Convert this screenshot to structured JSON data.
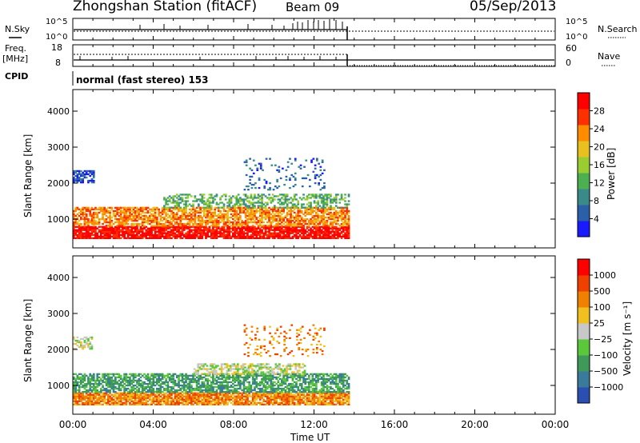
{
  "header": {
    "title": "Zhongshan Station (fitACF)",
    "beam": "Beam 09",
    "date": "05/Sep/2013"
  },
  "strip_labels": {
    "nsky": "N.Sky",
    "nsky_ticks": [
      "10^5",
      "10^0"
    ],
    "nsearch": "N.Search",
    "nsearch_ticks": [
      "10^5",
      "10^0"
    ],
    "freq_line1": "Freq.",
    "freq_line2": "[MHz]",
    "freq_ticks": [
      "18",
      "8"
    ],
    "nave": "Nave",
    "nave_ticks": [
      "60",
      "0"
    ],
    "cpid": "CPID",
    "cpid_value": "normal (fast stereo) 153"
  },
  "chart_data": [
    {
      "type": "heatmap",
      "name": "power-panel",
      "ylabel": "Slant Range [km]",
      "xlabel": "",
      "yticks": [
        "1000",
        "2000",
        "3000",
        "4000"
      ],
      "ylim": [
        200,
        4600
      ],
      "xlim": [
        0,
        24
      ],
      "data_until_hour": 13.7,
      "colorbar": {
        "label": "Power [dB]",
        "ticks": [
          "4",
          "8",
          "12",
          "16",
          "20",
          "24",
          "28"
        ],
        "colors": [
          "#1a1aff",
          "#2b5fa8",
          "#3a8a8a",
          "#4caf50",
          "#9acd32",
          "#e8c020",
          "#ff8c00",
          "#ff3000",
          "#ff0000"
        ]
      },
      "bands": [
        {
          "h0": 0.0,
          "h1": 13.7,
          "r0": 450,
          "r1": 800,
          "level": 8,
          "density": 0.85
        },
        {
          "h0": 0.0,
          "h1": 13.7,
          "r0": 800,
          "r1": 1300,
          "level": 6,
          "density": 0.7
        },
        {
          "h0": 4.5,
          "h1": 13.7,
          "r0": 1300,
          "r1": 1700,
          "level": 3,
          "density": 0.45
        },
        {
          "h0": 0.0,
          "h1": 1.0,
          "r0": 2000,
          "r1": 2350,
          "level": 1,
          "density": 0.6
        },
        {
          "h0": 8.5,
          "h1": 12.5,
          "r0": 1800,
          "r1": 2700,
          "level": 1,
          "density": 0.15
        }
      ]
    },
    {
      "type": "heatmap",
      "name": "velocity-panel",
      "ylabel": "Slant Range [km]",
      "xlabel": "Time UT",
      "yticks": [
        "1000",
        "2000",
        "3000",
        "4000"
      ],
      "ylim": [
        200,
        4600
      ],
      "xlim": [
        0,
        24
      ],
      "xticks": [
        "00:00",
        "04:00",
        "08:00",
        "12:00",
        "16:00",
        "20:00",
        "00:00"
      ],
      "data_until_hour": 13.7,
      "colorbar": {
        "label": "Velocity [m s⁻¹]",
        "ticks": [
          "1000",
          "500",
          "100",
          "25",
          "−25",
          "−100",
          "−500",
          "−1000"
        ],
        "colors": [
          "#2a4fb0",
          "#3a7a9a",
          "#3f9a5a",
          "#5ac83a",
          "#c8c8c8",
          "#f0c020",
          "#f08000",
          "#f04000",
          "#ff0000"
        ]
      },
      "bands": [
        {
          "h0": 0.0,
          "h1": 13.7,
          "r0": 450,
          "r1": 800,
          "level": 6,
          "density": 0.85
        },
        {
          "h0": 0.0,
          "h1": 13.7,
          "r0": 800,
          "r1": 1300,
          "level": 2,
          "density": 0.7
        },
        {
          "h0": 6.0,
          "h1": 11.5,
          "r0": 1300,
          "r1": 1600,
          "level": 4,
          "density": 0.6
        },
        {
          "h0": 0.0,
          "h1": 0.9,
          "r0": 2000,
          "r1": 2350,
          "level": 4,
          "density": 0.5
        },
        {
          "h0": 8.5,
          "h1": 12.5,
          "r0": 1800,
          "r1": 2700,
          "level": 6,
          "density": 0.15
        }
      ]
    }
  ]
}
